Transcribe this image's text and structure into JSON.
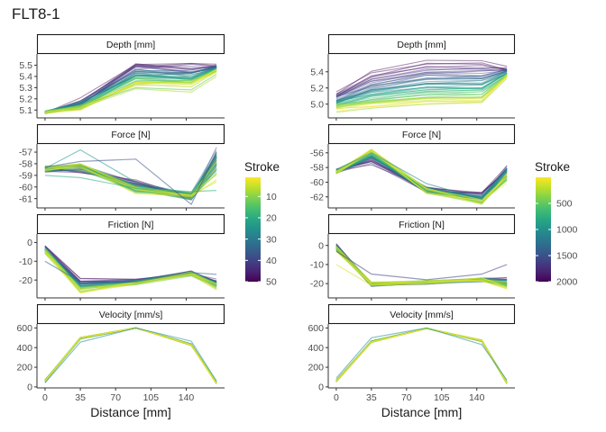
{
  "title": "FLT8-1",
  "colors": {
    "viridis": [
      "#440154",
      "#482878",
      "#3e4a89",
      "#31688e",
      "#26828e",
      "#1f9e89",
      "#35b779",
      "#6ece58",
      "#b5de2b",
      "#fde725"
    ],
    "strip_border": "#1a1a1a",
    "axis": "#333333"
  },
  "chart_data": [
    {
      "type": "line",
      "facet_group": "left",
      "xlabel": "Distance [mm]",
      "xlim": [
        -8,
        178
      ],
      "x_ticks": [
        0,
        35,
        70,
        105,
        140
      ],
      "x": [
        0,
        35,
        90,
        145,
        170
      ],
      "legend": {
        "title": "Stroke",
        "min": 1,
        "max": 50,
        "ticks": [
          10,
          20,
          30,
          40,
          50
        ],
        "reverse": true
      },
      "panels": [
        {
          "strip": "Depth [mm]",
          "ylim": [
            5.03,
            5.6
          ],
          "y_ticks": [
            5.1,
            5.2,
            5.3,
            5.4,
            5.5
          ],
          "start": [
            5.08,
            5.18,
            5.53,
            5.52,
            5.5
          ],
          "end": [
            5.08,
            5.12,
            5.33,
            5.31,
            5.45
          ],
          "jitter": [
            0.012,
            0.03,
            0.03,
            0.04,
            0.015
          ],
          "highlights": [
            {
              "stroke": 44,
              "values": [
                5.08,
                5.12,
                5.29,
                5.26,
                5.4
              ]
            },
            {
              "stroke": 38,
              "values": [
                5.09,
                5.14,
                5.3,
                5.28,
                5.42
              ]
            }
          ]
        },
        {
          "strip": "Force [N]",
          "ylim": [
            -61.8,
            -56.3
          ],
          "y_ticks": [
            -57,
            -58,
            -59,
            -60,
            -61
          ],
          "start": [
            -58.5,
            -58.5,
            -59.7,
            -60.8,
            -56.5
          ],
          "end": [
            -58.4,
            -58.2,
            -60.3,
            -60.8,
            -58.8
          ],
          "jitter": [
            0.25,
            0.35,
            0.35,
            0.35,
            1.0
          ],
          "highlights": [
            {
              "stroke": 27,
              "values": [
                -58.4,
                -56.8,
                -59.6,
                -60.6,
                -58.6
              ]
            },
            {
              "stroke": 13,
              "values": [
                -58.3,
                -57.8,
                -57.6,
                -61.5,
                -57.0
              ]
            },
            {
              "stroke": 32,
              "values": [
                -59.0,
                -59.2,
                -60.1,
                -60.4,
                -60.3
              ]
            }
          ]
        },
        {
          "strip": "Friction [N]",
          "ylim": [
            -29.5,
            4.5
          ],
          "y_ticks": [
            0,
            -10,
            -20
          ],
          "start": [
            -2,
            -20,
            -20,
            -16,
            -20
          ],
          "end": [
            -5,
            -26,
            -22,
            -17,
            -24
          ],
          "jitter": [
            1.5,
            1.5,
            1.0,
            1.2,
            2.0
          ],
          "highlights": [
            {
              "stroke": 18,
              "values": [
                -10,
                -21,
                -21,
                -16,
                -17
              ]
            }
          ]
        },
        {
          "strip": "Velocity [mm/s]",
          "ylim": [
            -10,
            640
          ],
          "y_ticks": [
            0,
            200,
            400,
            600
          ],
          "start": [
            60,
            495,
            600,
            430,
            40
          ],
          "end": [
            60,
            495,
            600,
            430,
            40
          ],
          "jitter": [
            10,
            8,
            2,
            8,
            10
          ],
          "highlights": [
            {
              "stroke": 25,
              "values": [
                40,
                455,
                600,
                465,
                60
              ]
            }
          ]
        }
      ]
    },
    {
      "type": "line",
      "facet_group": "right",
      "xlabel": "Distance [mm]",
      "xlim": [
        -8,
        178
      ],
      "x_ticks": [
        0,
        35,
        70,
        105,
        140
      ],
      "x": [
        0,
        35,
        90,
        145,
        170
      ],
      "legend": {
        "title": "Stroke",
        "min": 1,
        "max": 2000,
        "ticks": [
          500,
          1000,
          1500,
          2000
        ],
        "reverse": true
      },
      "panels": [
        {
          "strip": "Depth [mm]",
          "ylim": [
            4.83,
            5.62
          ],
          "y_ticks": [
            5.0,
            5.2,
            5.4
          ],
          "start": [
            5.15,
            5.4,
            5.55,
            5.55,
            5.45
          ],
          "end": [
            4.94,
            4.97,
            5.02,
            5.03,
            5.34
          ],
          "jitter": [
            0.03,
            0.02,
            0.02,
            0.02,
            0.02
          ],
          "highlights": [
            {
              "stroke": 1700,
              "values": [
                4.9,
                4.95,
                5.0,
                5.02,
                5.32
              ]
            }
          ]
        },
        {
          "strip": "Force [N]",
          "ylim": [
            -63.5,
            -54.8
          ],
          "y_ticks": [
            -56,
            -58,
            -60,
            -62
          ],
          "start": [
            -58.5,
            -57.5,
            -61.0,
            -61.5,
            -58.0
          ],
          "end": [
            -58.6,
            -55.6,
            -61.2,
            -62.8,
            -59.5
          ],
          "jitter": [
            0.3,
            0.4,
            0.4,
            0.4,
            0.8
          ],
          "highlights": [
            {
              "stroke": 900,
              "values": [
                -58.3,
                -56.0,
                -60.2,
                -62.3,
                -58.3
              ]
            }
          ]
        },
        {
          "strip": "Friction [N]",
          "ylim": [
            -27.5,
            6
          ],
          "y_ticks": [
            0,
            -10,
            -20
          ],
          "start": [
            0,
            -21,
            -20,
            -18,
            -18
          ],
          "end": [
            -2,
            -20,
            -19,
            -18,
            -21
          ],
          "jitter": [
            1.5,
            1.0,
            1.0,
            1.0,
            2.0
          ],
          "highlights": [
            {
              "stroke": 400,
              "values": [
                -3,
                -15,
                -18,
                -15,
                -10
              ]
            },
            {
              "stroke": 1900,
              "values": [
                -10,
                -21,
                -20,
                -17,
                -22
              ]
            }
          ]
        },
        {
          "strip": "Velocity [mm/s]",
          "ylim": [
            -10,
            640
          ],
          "y_ticks": [
            0,
            200,
            400,
            600
          ],
          "start": [
            60,
            460,
            595,
            470,
            40
          ],
          "end": [
            60,
            460,
            595,
            470,
            40
          ],
          "jitter": [
            10,
            8,
            2,
            8,
            10
          ],
          "highlights": [
            {
              "stroke": 1000,
              "values": [
                90,
                500,
                600,
                430,
                70
              ]
            }
          ]
        }
      ]
    }
  ]
}
